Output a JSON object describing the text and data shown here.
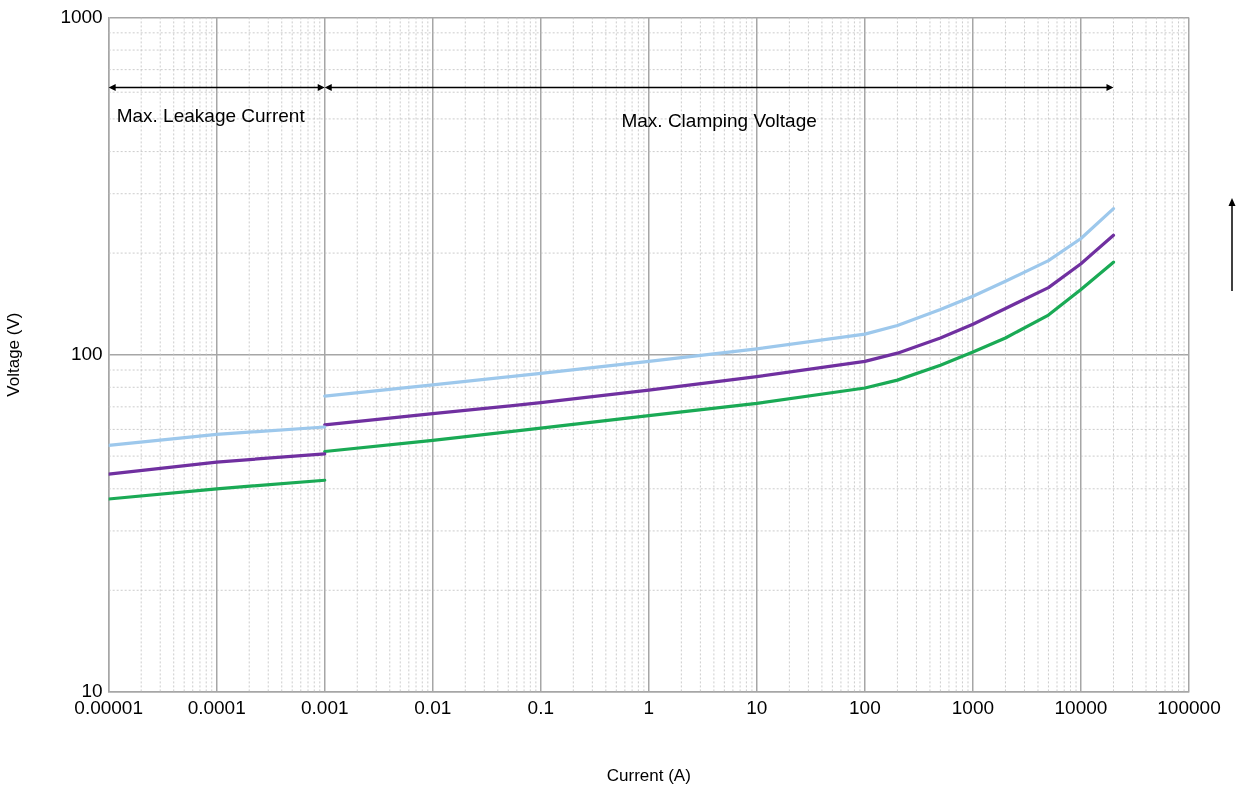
{
  "chart_data": {
    "type": "line",
    "xlabel": "Current (A)",
    "ylabel": "Voltage (V)",
    "log": "xy",
    "grid": true,
    "legend": false,
    "marker": "none",
    "line_style": "solid",
    "xlim": [
      1e-05,
      100000
    ],
    "xticks": [
      {
        "value": 1e-05,
        "label": "0.00001"
      },
      {
        "value": 0.0001,
        "label": "0.0001"
      },
      {
        "value": 0.001,
        "label": "0.001"
      },
      {
        "value": 0.01,
        "label": "0.01"
      },
      {
        "value": 0.1,
        "label": "0.1"
      },
      1,
      10,
      100,
      1000,
      10000,
      100000
    ],
    "ylim": [
      10,
      1000
    ],
    "yticks": [
      10,
      100,
      1000
    ],
    "annotations": [
      "Max. Leakage Current",
      "Max. Clamping Voltage"
    ],
    "series": [
      {
        "color": "#9dc8ec",
        "x": [
          1e-05,
          0.0001,
          0.001
        ],
        "values": [
          53.8,
          58,
          61
        ]
      },
      {
        "color": "#9dc8ec",
        "x": [
          0.001,
          0.01,
          0.1,
          1,
          10,
          100,
          200,
          500,
          1000,
          2000,
          5000,
          10000,
          20000
        ],
        "values": [
          75.3,
          81.3,
          88,
          95.5,
          104,
          115,
          122,
          136,
          149,
          165,
          190,
          221,
          271
        ]
      },
      {
        "color": "#7030a0",
        "x": [
          1e-05,
          0.0001,
          0.001
        ],
        "values": [
          44.2,
          48,
          50.8
        ]
      },
      {
        "color": "#7030a0",
        "x": [
          0.001,
          0.01,
          0.1,
          1,
          10,
          100,
          200,
          500,
          1000,
          2000,
          5000,
          10000,
          20000
        ],
        "values": [
          61.9,
          66.8,
          72,
          78.5,
          86,
          95.5,
          101,
          112,
          123,
          137,
          158,
          186,
          226
        ]
      },
      {
        "color": "#1aaa55",
        "x": [
          1e-05,
          0.0001,
          0.001
        ],
        "values": [
          37.3,
          40,
          42.4
        ]
      },
      {
        "color": "#1aaa55",
        "x": [
          0.001,
          0.01,
          0.1,
          1,
          10,
          100,
          200,
          500,
          1000,
          2000,
          5000,
          10000,
          20000
        ],
        "values": [
          51.6,
          55.7,
          60.5,
          65.9,
          71.7,
          79.6,
          84,
          93,
          101.8,
          112,
          131,
          156,
          188
        ]
      }
    ]
  }
}
